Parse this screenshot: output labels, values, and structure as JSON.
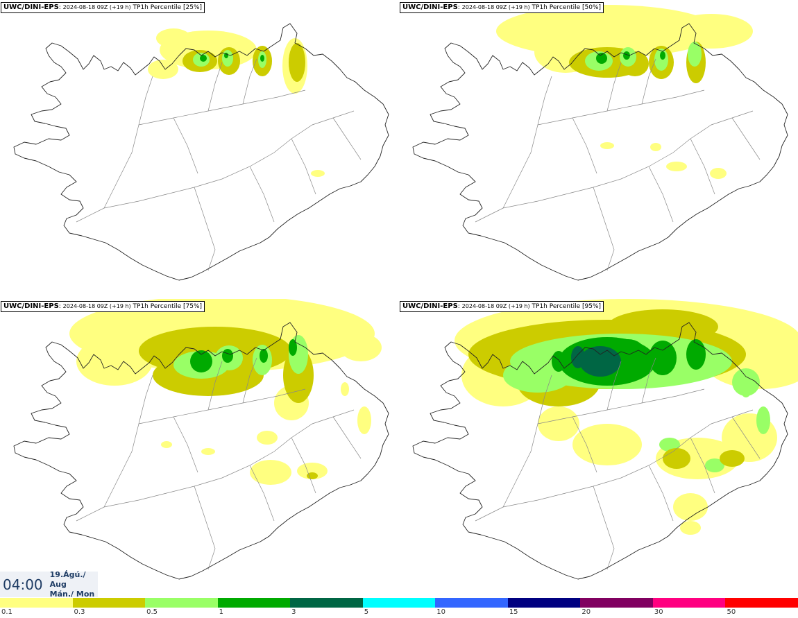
{
  "panels": [
    {
      "model": "UWC/DINI-EPS",
      "run": "2024-08-18 09Z (+19 h)",
      "product": "TP1h Percentile [25%]",
      "percentile": 25
    },
    {
      "model": "UWC/DINI-EPS",
      "run": "2024-08-18 09Z (+19 h)",
      "product": "TP1h Percentile [50%]",
      "percentile": 50
    },
    {
      "model": "UWC/DINI-EPS",
      "run": "2024-08-18 09Z (+19 h)",
      "product": "TP1h Percentile [75%]",
      "percentile": 75
    },
    {
      "model": "UWC/DINI-EPS",
      "run": "2024-08-18 09Z (+19 h)",
      "product": "TP1h Percentile [95%]",
      "percentile": 95
    }
  ],
  "valid_time": {
    "clock": "04:00",
    "date_line": "19.Ágú./ Aug",
    "day_line": "Mán./ Mon"
  },
  "legend": {
    "colors": [
      "#ffff80",
      "#cccc00",
      "#99ff66",
      "#00aa00",
      "#006644",
      "#00ffff",
      "#3366ff",
      "#000080",
      "#800060",
      "#ff0080",
      "#ff0000"
    ],
    "ticks": [
      "0.1",
      "0.3",
      "0.5",
      "1",
      "3",
      "5",
      "10",
      "15",
      "20",
      "30",
      "50"
    ]
  }
}
